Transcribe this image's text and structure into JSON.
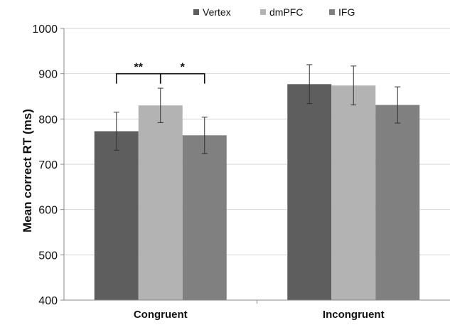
{
  "chart_data": {
    "type": "bar",
    "title": "",
    "xlabel": "",
    "ylabel": "Mean correct RT (ms)",
    "ylim": [
      400,
      1000
    ],
    "yticks": [
      400,
      500,
      600,
      700,
      800,
      900,
      1000
    ],
    "grid": true,
    "legend_position": "top",
    "categories": [
      "Congruent",
      "Incongruent"
    ],
    "series": [
      {
        "name": "Vertex",
        "color": "#5e5e5e",
        "values": [
          773,
          877
        ],
        "error": [
          42,
          43
        ]
      },
      {
        "name": "dmPFC",
        "color": "#b3b3b3",
        "values": [
          830,
          874
        ],
        "error": [
          38,
          43
        ]
      },
      {
        "name": "IFG",
        "color": "#808080",
        "values": [
          764,
          831
        ],
        "error": [
          40,
          40
        ]
      }
    ],
    "annotations": [
      {
        "label": "**",
        "category": 0,
        "from_series": 0,
        "to_series": 1
      },
      {
        "label": "*",
        "category": 0,
        "from_series": 1,
        "to_series": 2
      }
    ]
  }
}
